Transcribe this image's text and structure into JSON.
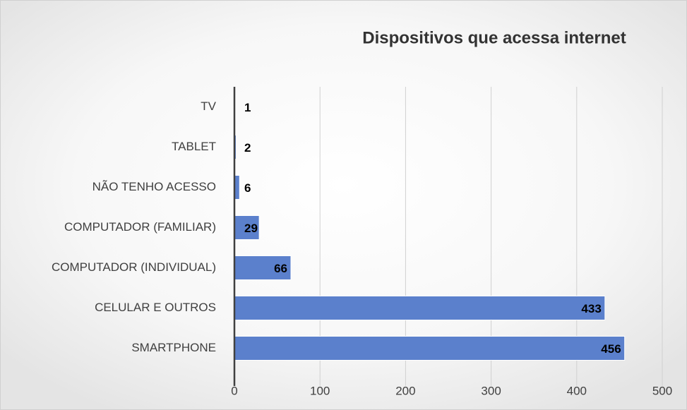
{
  "chart_data": {
    "type": "bar",
    "orientation": "horizontal",
    "title": "Dispositivos que acessa internet",
    "categories": [
      "TV",
      "TABLET",
      "NÃO TENHO ACESSO",
      "COMPUTADOR (FAMILIAR)",
      "COMPUTADOR (INDIVIDUAL)",
      "CELULAR E OUTROS",
      "SMARTPHONE"
    ],
    "values": [
      1,
      2,
      6,
      29,
      66,
      433,
      456
    ],
    "color": "#5b80cc",
    "xlim": [
      0,
      500
    ],
    "xticks": [
      0,
      100,
      200,
      300,
      400,
      500
    ],
    "grid": true
  }
}
